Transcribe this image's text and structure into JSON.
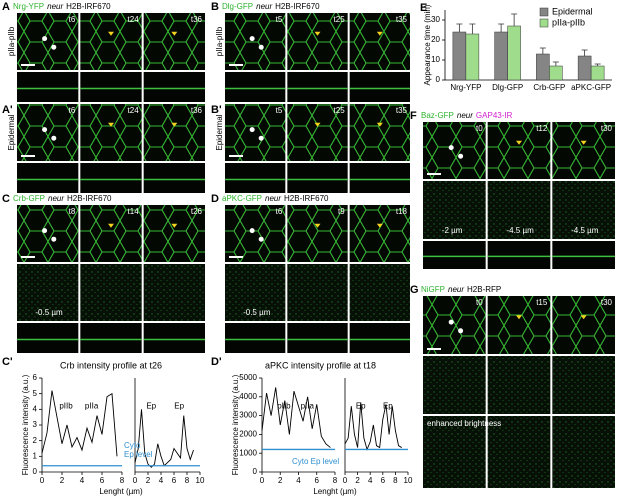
{
  "panels": [
    {
      "label": "A",
      "title": {
        "marker": "Nrg-YFP",
        "driver": "neur",
        "nucleus": "H2B-IRF670",
        "marker_color": "#2db32d",
        "nucleus_color": "#000000"
      },
      "side_label": "pIIa-pIIb",
      "times": [
        "t6",
        "t24",
        "t36"
      ]
    },
    {
      "label": "A'",
      "side_label": "Epidermal",
      "times": [
        "t6",
        "t24",
        "t36"
      ]
    },
    {
      "label": "B",
      "title": {
        "marker": "Dlg-GFP",
        "driver": "neur",
        "nucleus": "H2B-IRF670",
        "marker_color": "#2db32d",
        "nucleus_color": "#000000"
      },
      "side_label": "pIIa-pIIb",
      "times": [
        "t5",
        "t25",
        "t35"
      ]
    },
    {
      "label": "B'",
      "side_label": "Epidermal",
      "times": [
        "t5",
        "t25",
        "t35"
      ]
    },
    {
      "label": "C",
      "title": {
        "marker": "Crb-GFP",
        "driver": "neur",
        "nucleus": "H2B-IRF670",
        "marker_color": "#2db32d",
        "nucleus_color": "#000000"
      },
      "times": [
        "t8",
        "t14",
        "t26"
      ],
      "depths": [
        "-0.5 µm"
      ]
    },
    {
      "label": "D",
      "title": {
        "marker": "aPKC-GFP",
        "driver": "neur",
        "nucleus": "H2B-IRF670",
        "marker_color": "#2db32d",
        "nucleus_color": "#000000"
      },
      "times": [
        "t6",
        "t9",
        "t18"
      ],
      "depths": [
        "-0.5 µm"
      ]
    },
    {
      "label": "F",
      "title": {
        "marker": "Baz-GFP",
        "driver": "neur",
        "nucleus": "GAP43-IR",
        "marker_color": "#2db32d",
        "nucleus_color": "#d020d0"
      },
      "times": [
        "t0",
        "t12",
        "t30"
      ],
      "depths": [
        "-2 µm",
        "-4.5 µm",
        "-4.5 µm"
      ]
    },
    {
      "label": "G",
      "title": {
        "marker": "NiGFP",
        "driver": "neur",
        "nucleus": "H2B-RFP",
        "marker_color": "#2db32d",
        "nucleus_color": "#000000"
      },
      "times": [
        "t0",
        "t15",
        "t30"
      ],
      "note": "enhanced brightness"
    }
  ],
  "chart_data": [
    {
      "type": "bar",
      "label": "E",
      "ylabel": "Appearance time (min)",
      "categories": [
        "Nrg-YFP",
        "Dlg-GFP",
        "Crb-GFP",
        "aPKC-GFP"
      ],
      "series": [
        {
          "name": "Epidermal",
          "color": "#858585",
          "values": [
            24,
            24,
            13,
            12
          ],
          "errors": [
            4,
            4,
            3,
            3
          ]
        },
        {
          "name": "pIIa-pIIb",
          "color": "#9fdc8c",
          "values": [
            23,
            27,
            7,
            7
          ],
          "errors": [
            5,
            6,
            2,
            1
          ]
        }
      ],
      "ylim": [
        0,
        35
      ],
      "yticks": [
        0,
        10,
        20,
        30
      ],
      "legend": "upper-right"
    },
    {
      "type": "line",
      "label": "C'",
      "title": "Crb intensity profile at t26",
      "ylabel": "Fluorescence intensity (a.u.)",
      "xlabel": "Lenght (µm)",
      "ylim": [
        0,
        6
      ],
      "yticks": [
        0,
        1,
        2,
        3,
        4,
        5,
        6
      ],
      "cyto_label": [
        "Cyto",
        "Ep level"
      ],
      "subplots": [
        {
          "xlim": [
            0,
            8
          ],
          "xticks": [
            0,
            2,
            4,
            6,
            8
          ],
          "annotations": [
            "pIIb",
            "pIIa"
          ],
          "series": [
            {
              "color": "#000000",
              "x": [
                0,
                0.5,
                1,
                1.5,
                2,
                2.5,
                3,
                3.5,
                4,
                4.5,
                5,
                5.5,
                6,
                6.5,
                7,
                7.5
              ],
              "values": [
                1.2,
                2.5,
                5.2,
                3.5,
                1.8,
                3.0,
                1.6,
                2.2,
                1.4,
                2.8,
                1.9,
                3.6,
                2.4,
                4.8,
                5.0,
                1.0
              ]
            },
            {
              "color": "#2f8fd0",
              "x": [
                0,
                8
              ],
              "values": [
                0.4,
                0.4
              ]
            }
          ]
        },
        {
          "xlim": [
            0,
            10
          ],
          "xticks": [
            0,
            2,
            4,
            6,
            8,
            10
          ],
          "annotations": [
            "Ep",
            "Ep"
          ],
          "series": [
            {
              "color": "#000000",
              "x": [
                0,
                0.5,
                1,
                1.5,
                2,
                2.5,
                3,
                3.5,
                4,
                4.5,
                5,
                5.5,
                6,
                6.5,
                7,
                7.5,
                8,
                8.5,
                9
              ],
              "values": [
                0.6,
                1.5,
                4.0,
                1.2,
                0.5,
                0.3,
                0.5,
                1.8,
                1.0,
                0.4,
                0.6,
                0.8,
                1.5,
                1.2,
                0.9,
                3.6,
                1.5,
                0.8,
                1.4
              ]
            },
            {
              "color": "#2f8fd0",
              "x": [
                0,
                10
              ],
              "values": [
                0.4,
                0.4
              ]
            }
          ]
        }
      ]
    },
    {
      "type": "line",
      "label": "D'",
      "title": "aPKC intensity profile at t18",
      "ylabel": "Fluorescence intensity (a.u.)",
      "xlabel": "Lenght (µm)",
      "ylim": [
        0,
        5000
      ],
      "yticks": [
        0,
        1000,
        2000,
        3000,
        4000,
        5000
      ],
      "cyto_label": [
        "Cyto Ep level"
      ],
      "subplots": [
        {
          "xlim": [
            0,
            8
          ],
          "xticks": [
            0,
            2,
            4,
            6,
            8
          ],
          "annotations": [
            "pIIb",
            "pIIa"
          ],
          "series": [
            {
              "color": "#000000",
              "x": [
                0,
                0.5,
                1,
                1.5,
                2,
                2.5,
                3,
                3.5,
                4,
                4.5,
                5,
                5.5,
                6,
                6.5,
                7,
                7.5
              ],
              "values": [
                2200,
                4200,
                3000,
                4500,
                2500,
                3800,
                2000,
                4300,
                3500,
                2700,
                4000,
                2300,
                3600,
                1900,
                1500,
                1300
              ]
            },
            {
              "color": "#2f8fd0",
              "x": [
                0,
                8
              ],
              "values": [
                1200,
                1200
              ]
            }
          ]
        },
        {
          "xlim": [
            0,
            10
          ],
          "xticks": [
            0,
            2,
            4,
            6,
            8,
            10
          ],
          "annotations": [
            "Ep",
            "Ep"
          ],
          "series": [
            {
              "color": "#000000",
              "x": [
                0,
                0.5,
                1,
                1.5,
                2,
                2.5,
                3,
                3.5,
                4,
                4.5,
                5,
                5.5,
                6,
                6.5,
                7,
                7.5,
                8,
                8.5,
                9
              ],
              "values": [
                1500,
                1800,
                3500,
                2000,
                1300,
                3700,
                1800,
                1200,
                1600,
                2500,
                1400,
                1300,
                2800,
                3600,
                2000,
                3500,
                2200,
                1400,
                1300
              ]
            },
            {
              "color": "#2f8fd0",
              "x": [
                0,
                10
              ],
              "values": [
                1200,
                1200
              ]
            }
          ]
        }
      ]
    }
  ]
}
